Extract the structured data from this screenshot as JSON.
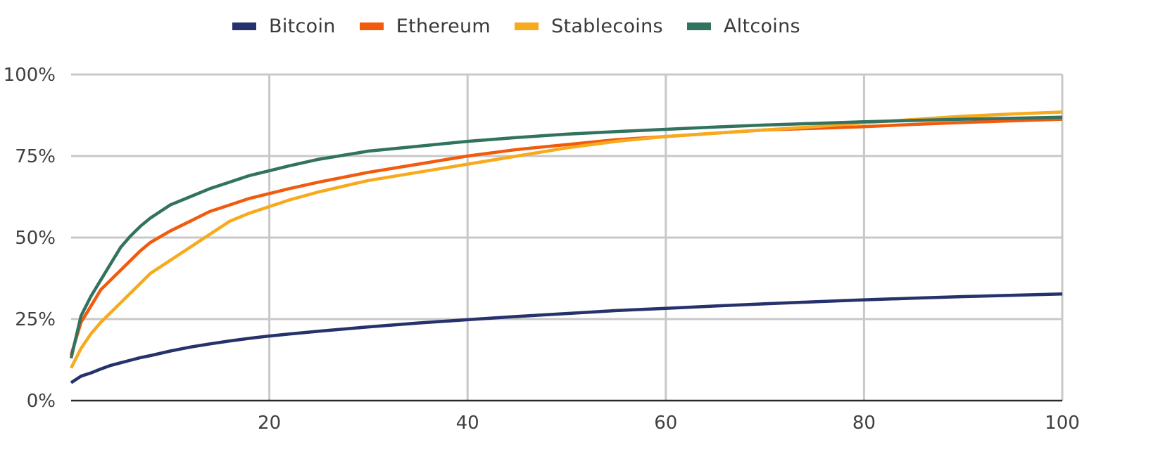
{
  "chart_data": {
    "type": "line",
    "title": "",
    "xlabel": "",
    "ylabel": "",
    "xlim": [
      0,
      100
    ],
    "ylim": [
      0,
      100
    ],
    "x_ticks": [
      20,
      40,
      60,
      80,
      100
    ],
    "y_ticks": [
      0,
      25,
      50,
      75,
      100
    ],
    "x_tick_labels": [
      "20",
      "40",
      "60",
      "80",
      "100"
    ],
    "y_tick_labels": [
      "0%",
      "25%",
      "50%",
      "75%",
      "100%"
    ],
    "grid": true,
    "legend_position": "top",
    "x": [
      0,
      1,
      2,
      3,
      4,
      5,
      6,
      7,
      8,
      10,
      12,
      14,
      16,
      18,
      20,
      22,
      25,
      30,
      35,
      40,
      45,
      50,
      55,
      60,
      65,
      70,
      75,
      80,
      85,
      90,
      95,
      100
    ],
    "series": [
      {
        "name": "Bitcoin",
        "color": "#26326b",
        "values": [
          5.5,
          7.5,
          8.5,
          9.7,
          10.8,
          11.6,
          12.4,
          13.2,
          13.8,
          15.2,
          16.4,
          17.4,
          18.3,
          19.1,
          19.8,
          20.4,
          21.3,
          22.6,
          23.8,
          24.8,
          25.8,
          26.7,
          27.6,
          28.3,
          29.0,
          29.7,
          30.3,
          30.9,
          31.4,
          31.9,
          32.3,
          32.7
        ]
      },
      {
        "name": "Ethereum",
        "color": "#f25a0e",
        "values": [
          14,
          24,
          29,
          34,
          37,
          40,
          43,
          46,
          48.5,
          52,
          55,
          58,
          60,
          62,
          63.5,
          65,
          67,
          70,
          72.5,
          75,
          77,
          78.5,
          80,
          81,
          82,
          83,
          83.5,
          84,
          84.7,
          85.3,
          85.8,
          86.3
        ]
      },
      {
        "name": "Stablecoins",
        "color": "#f6aa1c",
        "values": [
          10,
          16,
          20.5,
          24,
          27,
          30,
          33,
          36,
          39,
          43,
          47,
          51,
          55,
          57.5,
          59.5,
          61.5,
          64,
          67.5,
          70,
          72.5,
          75,
          77.5,
          79.5,
          81,
          82,
          83,
          84,
          85.2,
          86.2,
          87.2,
          87.9,
          88.5
        ]
      },
      {
        "name": "Altcoins",
        "color": "#32735f",
        "values": [
          13,
          26,
          32,
          37,
          42,
          47,
          50.5,
          53.5,
          56,
          60,
          62.5,
          65,
          67,
          69,
          70.5,
          72,
          74,
          76.5,
          78,
          79.5,
          80.7,
          81.7,
          82.5,
          83.2,
          83.9,
          84.5,
          85,
          85.5,
          85.9,
          86.3,
          86.6,
          86.9
        ]
      }
    ]
  }
}
